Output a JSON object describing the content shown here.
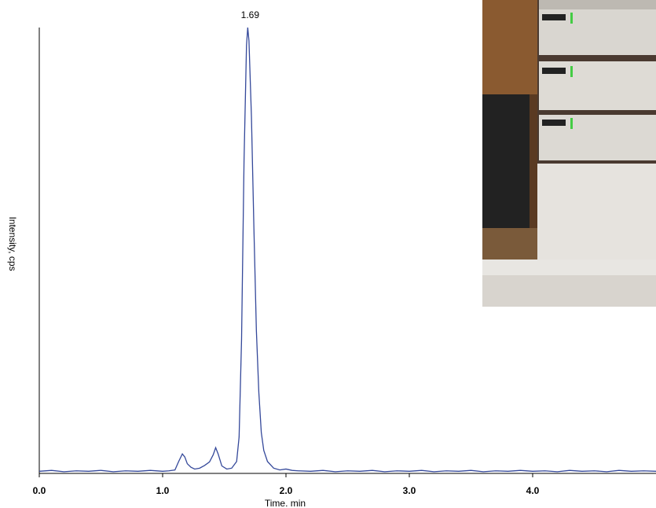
{
  "chart_data": {
    "type": "line",
    "x": [
      0.0,
      0.1,
      0.2,
      0.3,
      0.4,
      0.5,
      0.6,
      0.7,
      0.8,
      0.9,
      1.0,
      1.05,
      1.1,
      1.13,
      1.16,
      1.18,
      1.2,
      1.23,
      1.26,
      1.3,
      1.34,
      1.38,
      1.41,
      1.43,
      1.45,
      1.48,
      1.52,
      1.56,
      1.6,
      1.62,
      1.64,
      1.66,
      1.68,
      1.69,
      1.7,
      1.72,
      1.74,
      1.76,
      1.78,
      1.8,
      1.82,
      1.85,
      1.9,
      1.95,
      2.0,
      2.05,
      2.1,
      2.2,
      2.3,
      2.4,
      2.5,
      2.6,
      2.7,
      2.8,
      2.9,
      3.0,
      3.1,
      3.2,
      3.3,
      3.4,
      3.5,
      3.6,
      3.7,
      3.8,
      3.9,
      4.0,
      4.1,
      4.2,
      4.3,
      4.4,
      4.5,
      4.6,
      4.7,
      4.8,
      4.9,
      5.0
    ],
    "values": [
      0.3,
      0.5,
      0.2,
      0.4,
      0.3,
      0.5,
      0.2,
      0.4,
      0.3,
      0.5,
      0.3,
      0.4,
      0.6,
      2.5,
      4.2,
      3.5,
      2.0,
      1.2,
      0.8,
      1.0,
      1.6,
      2.4,
      4.0,
      5.6,
      4.2,
      1.5,
      0.8,
      1.0,
      2.5,
      8,
      30,
      70,
      96,
      100,
      97,
      80,
      55,
      32,
      18,
      9,
      5,
      2.5,
      1.0,
      0.6,
      0.8,
      0.5,
      0.4,
      0.3,
      0.5,
      0.2,
      0.4,
      0.3,
      0.5,
      0.2,
      0.4,
      0.3,
      0.5,
      0.2,
      0.4,
      0.3,
      0.5,
      0.2,
      0.4,
      0.3,
      0.5,
      0.3,
      0.4,
      0.2,
      0.5,
      0.3,
      0.4,
      0.2,
      0.5,
      0.3,
      0.4,
      0.3
    ],
    "color": "#34489a",
    "xlim": [
      0,
      5
    ],
    "ylim": [
      0,
      100
    ],
    "xticks": [
      {
        "value": 0,
        "label": "0.0"
      },
      {
        "value": 1,
        "label": "1.0"
      },
      {
        "value": 2,
        "label": "2.0"
      },
      {
        "value": 3,
        "label": "3.0"
      },
      {
        "value": 4,
        "label": "4.0"
      }
    ],
    "xlabel": "Time. min",
    "ylabel": "Intensity, cps",
    "annotations": [
      {
        "text": "1.69",
        "x": 1.69
      }
    ]
  }
}
